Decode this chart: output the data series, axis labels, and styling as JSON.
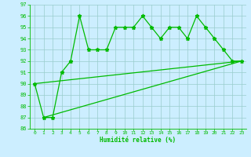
{
  "xlabel": "Humidité relative (%)",
  "background_color": "#cceeff",
  "grid_color": "#99cccc",
  "line_color": "#00bb00",
  "xlim": [
    -0.5,
    23.5
  ],
  "ylim": [
    86,
    97
  ],
  "yticks": [
    86,
    87,
    88,
    89,
    90,
    91,
    92,
    93,
    94,
    95,
    96,
    97
  ],
  "xticks": [
    0,
    1,
    2,
    3,
    4,
    5,
    6,
    7,
    8,
    9,
    10,
    11,
    12,
    13,
    14,
    15,
    16,
    17,
    18,
    19,
    20,
    21,
    22,
    23
  ],
  "series1_x": [
    0,
    1,
    2,
    3,
    4,
    5,
    6,
    7,
    8,
    9,
    10,
    11,
    12,
    13,
    14,
    15,
    16,
    17,
    18,
    19,
    20,
    21,
    22,
    23
  ],
  "series1_y": [
    90,
    87,
    87,
    91,
    92,
    96,
    93,
    93,
    93,
    95,
    95,
    95,
    96,
    95,
    94,
    95,
    95,
    94,
    96,
    95,
    94,
    93,
    92,
    92
  ],
  "line2_x": [
    0,
    23
  ],
  "line2_y": [
    90,
    92
  ],
  "line3_x": [
    1,
    23
  ],
  "line3_y": [
    87,
    92
  ]
}
